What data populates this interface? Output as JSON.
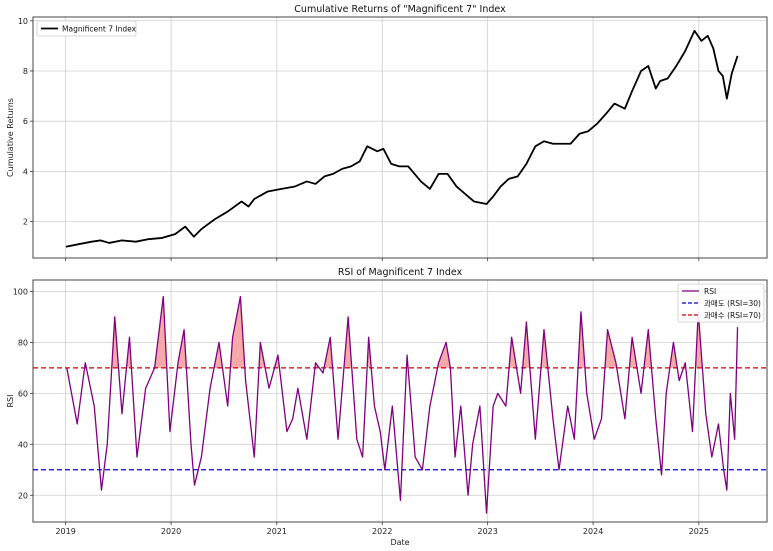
{
  "chart_data": [
    {
      "type": "line",
      "title": "Cumulative Returns of \"Magnificent 7\" Index",
      "xlabel": "",
      "ylabel": "Cumulative Returns",
      "xlim": [
        "2018-09-10",
        "2025-08-25"
      ],
      "ylim": [
        0.55,
        10.15
      ],
      "grid": true,
      "legend_position": "top-left",
      "x_ticks": [
        "2019",
        "2020",
        "2021",
        "2022",
        "2023",
        "2024",
        "2025"
      ],
      "y_ticks": [
        2,
        4,
        6,
        8,
        10
      ],
      "series": [
        {
          "name": "Magnificent 7 Index",
          "color": "#000000",
          "x": [
            "2019-01-02",
            "2019-02-15",
            "2019-04-01",
            "2019-05-01",
            "2019-06-01",
            "2019-07-15",
            "2019-09-01",
            "2019-10-15",
            "2019-12-01",
            "2020-01-15",
            "2020-02-19",
            "2020-03-20",
            "2020-04-15",
            "2020-06-01",
            "2020-07-15",
            "2020-09-01",
            "2020-09-25",
            "2020-10-15",
            "2020-12-01",
            "2021-01-15",
            "2021-03-05",
            "2021-04-15",
            "2021-05-15",
            "2021-06-15",
            "2021-07-15",
            "2021-08-15",
            "2021-09-15",
            "2021-10-15",
            "2021-11-10",
            "2021-12-15",
            "2022-01-05",
            "2022-02-01",
            "2022-03-01",
            "2022-04-01",
            "2022-05-15",
            "2022-06-15",
            "2022-07-15",
            "2022-08-15",
            "2022-09-15",
            "2022-10-15",
            "2022-11-15",
            "2022-12-28",
            "2023-01-20",
            "2023-02-15",
            "2023-03-15",
            "2023-04-15",
            "2023-05-15",
            "2023-06-15",
            "2023-07-15",
            "2023-08-15",
            "2023-09-15",
            "2023-10-15",
            "2023-11-15",
            "2023-12-15",
            "2024-01-15",
            "2024-02-15",
            "2024-03-15",
            "2024-04-20",
            "2024-05-15",
            "2024-06-15",
            "2024-07-10",
            "2024-08-05",
            "2024-08-20",
            "2024-09-15",
            "2024-10-15",
            "2024-11-15",
            "2024-12-17",
            "2025-01-10",
            "2025-02-01",
            "2025-02-20",
            "2025-03-10",
            "2025-03-25",
            "2025-04-08",
            "2025-04-25",
            "2025-05-15"
          ],
          "values": [
            1.0,
            1.1,
            1.2,
            1.25,
            1.15,
            1.25,
            1.2,
            1.3,
            1.35,
            1.5,
            1.8,
            1.4,
            1.7,
            2.1,
            2.4,
            2.8,
            2.6,
            2.9,
            3.2,
            3.3,
            3.4,
            3.6,
            3.5,
            3.8,
            3.9,
            4.1,
            4.2,
            4.4,
            5.0,
            4.8,
            4.9,
            4.3,
            4.2,
            4.2,
            3.6,
            3.3,
            3.9,
            3.9,
            3.4,
            3.1,
            2.8,
            2.7,
            3.0,
            3.4,
            3.7,
            3.8,
            4.3,
            5.0,
            5.2,
            5.1,
            5.1,
            5.1,
            5.5,
            5.6,
            5.9,
            6.3,
            6.7,
            6.5,
            7.2,
            8.0,
            8.2,
            7.3,
            7.6,
            7.7,
            8.2,
            8.8,
            9.6,
            9.2,
            9.4,
            8.9,
            8.0,
            7.8,
            6.9,
            7.9,
            8.6
          ]
        }
      ]
    },
    {
      "type": "line",
      "title": "RSI of Magnificent 7 Index",
      "xlabel": "Date",
      "ylabel": "RSI",
      "xlim": [
        "2018-09-10",
        "2025-08-25"
      ],
      "ylim": [
        9.5,
        104.5
      ],
      "grid": true,
      "legend_position": "top-right",
      "x_ticks": [
        "2019",
        "2020",
        "2021",
        "2022",
        "2023",
        "2024",
        "2025"
      ],
      "y_ticks": [
        20,
        40,
        60,
        80,
        100
      ],
      "series": [
        {
          "name": "RSI",
          "color": "#800080",
          "x": [
            "2019-01-05",
            "2019-02-10",
            "2019-03-10",
            "2019-04-10",
            "2019-05-05",
            "2019-05-25",
            "2019-06-20",
            "2019-07-15",
            "2019-08-10",
            "2019-09-05",
            "2019-10-05",
            "2019-11-05",
            "2019-12-05",
            "2019-12-28",
            "2020-01-25",
            "2020-02-15",
            "2020-03-10",
            "2020-03-22",
            "2020-04-15",
            "2020-05-15",
            "2020-06-15",
            "2020-07-15",
            "2020-08-01",
            "2020-08-28",
            "2020-09-15",
            "2020-10-15",
            "2020-11-05",
            "2020-12-05",
            "2021-01-05",
            "2021-02-05",
            "2021-02-25",
            "2021-03-15",
            "2021-04-15",
            "2021-05-15",
            "2021-06-10",
            "2021-07-05",
            "2021-08-01",
            "2021-09-05",
            "2021-10-05",
            "2021-10-25",
            "2021-11-15",
            "2021-12-05",
            "2021-12-25",
            "2022-01-10",
            "2022-02-05",
            "2022-03-05",
            "2022-03-28",
            "2022-04-25",
            "2022-05-20",
            "2022-06-15",
            "2022-07-15",
            "2022-08-10",
            "2022-08-25",
            "2022-09-10",
            "2022-09-30",
            "2022-10-25",
            "2022-11-10",
            "2022-12-05",
            "2022-12-28",
            "2023-01-20",
            "2023-02-05",
            "2023-03-05",
            "2023-03-25",
            "2023-04-25",
            "2023-05-15",
            "2023-06-15",
            "2023-07-15",
            "2023-08-15",
            "2023-09-05",
            "2023-10-05",
            "2023-10-28",
            "2023-11-20",
            "2023-12-10",
            "2024-01-05",
            "2024-01-30",
            "2024-02-20",
            "2024-03-20",
            "2024-04-20",
            "2024-05-15",
            "2024-06-15",
            "2024-07-10",
            "2024-08-05",
            "2024-08-25",
            "2024-09-10",
            "2024-10-05",
            "2024-10-25",
            "2024-11-15",
            "2024-12-10",
            "2024-12-30",
            "2025-01-25",
            "2025-02-15",
            "2025-03-10",
            "2025-03-28",
            "2025-04-08",
            "2025-04-20",
            "2025-05-05",
            "2025-05-15"
          ],
          "values": [
            70,
            48,
            72,
            55,
            22,
            40,
            90,
            52,
            82,
            35,
            62,
            70,
            98,
            45,
            72,
            85,
            40,
            24,
            35,
            62,
            80,
            55,
            82,
            98,
            65,
            35,
            80,
            62,
            75,
            45,
            50,
            62,
            42,
            72,
            68,
            82,
            42,
            90,
            42,
            35,
            82,
            55,
            45,
            30,
            55,
            18,
            75,
            35,
            30,
            55,
            72,
            80,
            70,
            35,
            55,
            20,
            40,
            55,
            13,
            55,
            60,
            55,
            82,
            60,
            88,
            42,
            85,
            50,
            30,
            55,
            42,
            92,
            60,
            42,
            50,
            85,
            72,
            50,
            82,
            60,
            85,
            50,
            28,
            60,
            80,
            65,
            72,
            45,
            92,
            52,
            35,
            48,
            30,
            22,
            60,
            42,
            86
          ]
        },
        {
          "name": "과매도 (RSI=30)",
          "color": "#0000cc",
          "y": 30
        },
        {
          "name": "과매수 (RSI=70)",
          "color": "#cc0000",
          "y": 70
        }
      ],
      "overbought_fill_color": "#f4a0a0"
    }
  ]
}
